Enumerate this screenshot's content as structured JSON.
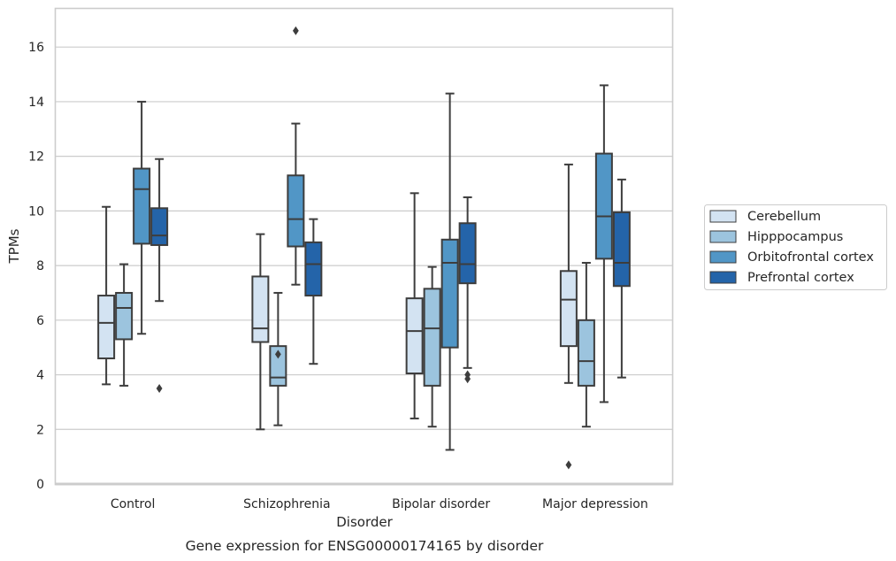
{
  "chart_data": {
    "type": "box",
    "caption": "Gene expression for ENSG00000174165 by disorder",
    "xlabel": "Disorder",
    "ylabel": "TPMs",
    "ylim": [
      0,
      17.4
    ],
    "yticks": [
      0,
      2,
      4,
      6,
      8,
      10,
      12,
      14,
      16
    ],
    "grid": true,
    "legend_position": "right",
    "categories": [
      "Control",
      "Schizophrenia",
      "Bipolar disorder",
      "Major depression"
    ],
    "series": [
      {
        "name": "Cerebellum",
        "color": "#d3e3f2",
        "boxes": [
          {
            "whislo": 3.65,
            "q1": 4.6,
            "med": 5.9,
            "q3": 6.9,
            "whishi": 10.15,
            "fliers": []
          },
          {
            "whislo": 2.0,
            "q1": 5.2,
            "med": 5.7,
            "q3": 7.6,
            "whishi": 9.15,
            "fliers": []
          },
          {
            "whislo": 2.4,
            "q1": 4.05,
            "med": 5.6,
            "q3": 6.8,
            "whishi": 10.65,
            "fliers": []
          },
          {
            "whislo": 3.7,
            "q1": 5.05,
            "med": 6.75,
            "q3": 7.8,
            "whishi": 11.7,
            "fliers": [
              0.7
            ]
          }
        ]
      },
      {
        "name": "Hipppocampus",
        "color": "#9cc4de",
        "boxes": [
          {
            "whislo": 3.6,
            "q1": 5.3,
            "med": 6.45,
            "q3": 7.0,
            "whishi": 8.05,
            "fliers": []
          },
          {
            "whislo": 2.15,
            "q1": 3.6,
            "med": 3.9,
            "q3": 5.05,
            "whishi": 7.0,
            "fliers": [
              4.75
            ]
          },
          {
            "whislo": 2.1,
            "q1": 3.6,
            "med": 5.7,
            "q3": 7.15,
            "whishi": 7.95,
            "fliers": []
          },
          {
            "whislo": 2.1,
            "q1": 3.6,
            "med": 4.5,
            "q3": 6.0,
            "whishi": 8.1,
            "fliers": []
          }
        ]
      },
      {
        "name": "Orbitofrontal cortex",
        "color": "#5196c6",
        "boxes": [
          {
            "whislo": 5.5,
            "q1": 8.8,
            "med": 10.8,
            "q3": 11.55,
            "whishi": 14.0,
            "fliers": []
          },
          {
            "whislo": 7.3,
            "q1": 8.7,
            "med": 9.7,
            "q3": 11.3,
            "whishi": 13.2,
            "fliers": [
              16.6
            ]
          },
          {
            "whislo": 1.25,
            "q1": 5.0,
            "med": 8.1,
            "q3": 8.95,
            "whishi": 14.3,
            "fliers": []
          },
          {
            "whislo": 3.0,
            "q1": 8.25,
            "med": 9.8,
            "q3": 12.1,
            "whishi": 14.6,
            "fliers": []
          }
        ]
      },
      {
        "name": "Prefrontal cortex",
        "color": "#2464a9",
        "boxes": [
          {
            "whislo": 6.7,
            "q1": 8.75,
            "med": 9.1,
            "q3": 10.1,
            "whishi": 11.9,
            "fliers": [
              3.5
            ]
          },
          {
            "whislo": 4.4,
            "q1": 6.9,
            "med": 8.05,
            "q3": 8.85,
            "whishi": 9.7,
            "fliers": []
          },
          {
            "whislo": 4.25,
            "q1": 7.35,
            "med": 8.05,
            "q3": 9.55,
            "whishi": 10.5,
            "fliers": [
              4.0,
              3.85
            ]
          },
          {
            "whislo": 3.9,
            "q1": 7.25,
            "med": 8.1,
            "q3": 9.95,
            "whishi": 11.15,
            "fliers": []
          }
        ]
      }
    ]
  }
}
